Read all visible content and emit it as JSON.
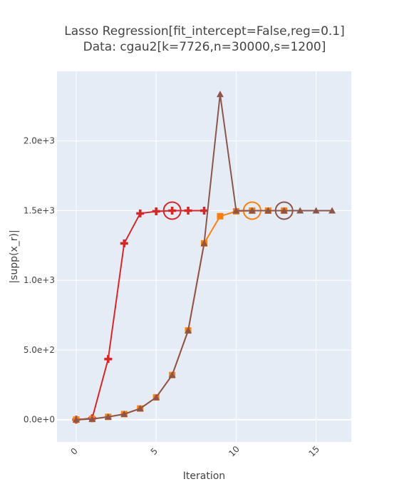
{
  "chart_data": {
    "type": "line",
    "title": [
      "Lasso Regression[fit_intercept=False,reg=0.1]",
      "Data: cgau2[k=7726,n=30000,s=1200]"
    ],
    "xlabel": "Iteration",
    "ylabel": "|supp(x_r)|",
    "xlim": [
      -1.2,
      17.2
    ],
    "ylim": [
      -160,
      2500
    ],
    "xticks": [
      0,
      5,
      10,
      15
    ],
    "xtick_labels": [
      "0",
      "5",
      "10",
      "15"
    ],
    "yticks": [
      0,
      500,
      1000,
      1500,
      2000
    ],
    "ytick_labels": [
      "0.0e+0",
      "5.0e+2",
      "1.0e+3",
      "1.5e+3",
      "2.0e+3"
    ],
    "grid": true,
    "series": [
      {
        "color": "#d62728",
        "marker": "cross",
        "x": [
          0,
          1,
          2,
          3,
          4,
          5,
          6,
          7,
          8
        ],
        "y": [
          0,
          10,
          435,
          1265,
          1480,
          1495,
          1500,
          1500,
          1500
        ],
        "circled_x": 6
      },
      {
        "color": "#ff7f0e",
        "marker": "square",
        "x": [
          0,
          1,
          2,
          3,
          4,
          5,
          6,
          7,
          8,
          9,
          10,
          11,
          12,
          13
        ],
        "y": [
          0,
          5,
          20,
          40,
          80,
          160,
          320,
          640,
          1265,
          1460,
          1495,
          1500,
          1500,
          1500
        ],
        "circled_x": 11
      },
      {
        "color": "#8c564b",
        "marker": "triangle",
        "x": [
          0,
          1,
          2,
          3,
          4,
          5,
          6,
          7,
          8,
          9,
          10,
          11,
          12,
          13,
          14,
          15,
          16
        ],
        "y": [
          0,
          5,
          20,
          40,
          80,
          160,
          320,
          640,
          1265,
          2335,
          1500,
          1500,
          1500,
          1500,
          1500,
          1500,
          1500
        ],
        "circled_x": 13
      }
    ],
    "colors": {
      "plot_bg": "#e5ecf6",
      "grid": "#ffffff",
      "text": "#444444"
    }
  }
}
